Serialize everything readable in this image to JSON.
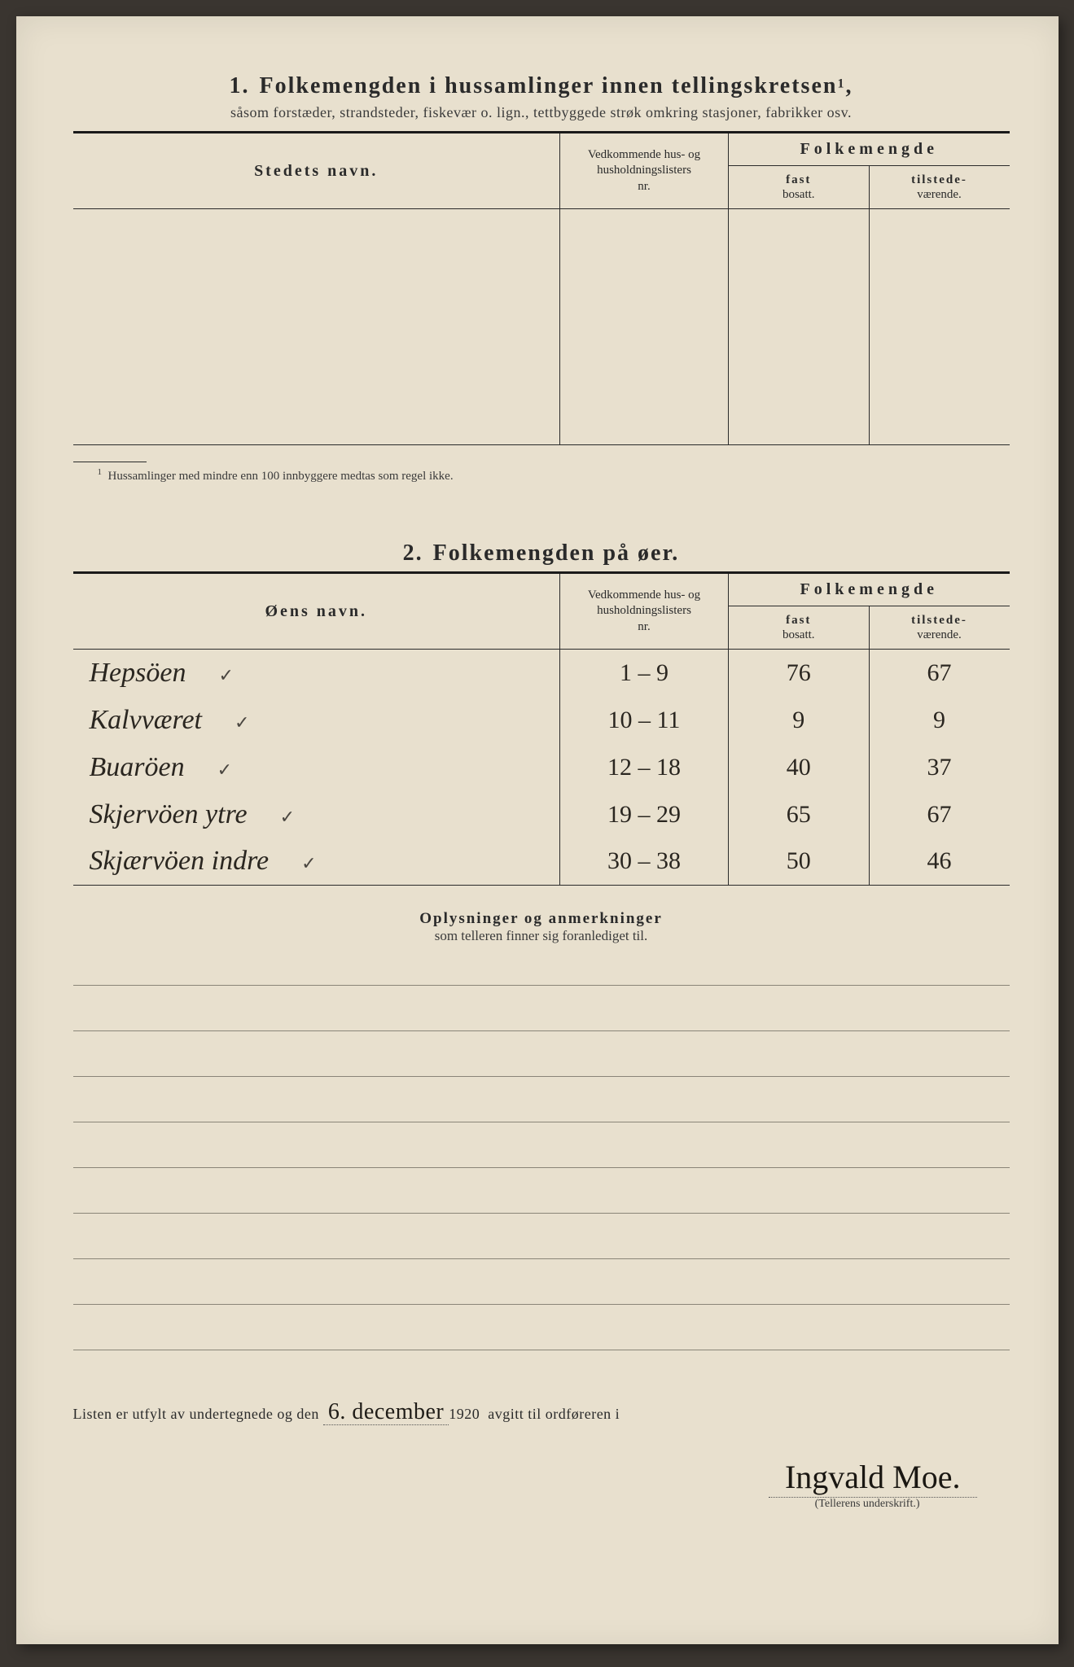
{
  "section1": {
    "number": "1.",
    "title": "Folkemengden i hussamlinger innen tellingskretsen",
    "title_sup": "1",
    "subtitle": "såsom forstæder, strandsteder, fiskevær o. lign., tettbyggede strøk omkring stasjoner, fabrikker osv.",
    "headers": {
      "name": "Stedets navn.",
      "nr_line1": "Vedkommende hus- og",
      "nr_line2": "husholdningslisters",
      "nr_line3": "nr.",
      "folk": "Folkemengde",
      "fast_bold": "fast",
      "fast_sub": "bosatt.",
      "tilst_bold": "tilstede-",
      "tilst_sub": "værende."
    },
    "empty_rows": 5,
    "footnote_sup": "1",
    "footnote": "Hussamlinger med mindre enn 100 innbyggere medtas som regel ikke."
  },
  "section2": {
    "number": "2.",
    "title": "Folkemengden på øer.",
    "headers": {
      "name": "Øens navn.",
      "nr_line1": "Vedkommende hus- og",
      "nr_line2": "husholdningslisters",
      "nr_line3": "nr.",
      "folk": "Folkemengde",
      "fast_bold": "fast",
      "fast_sub": "bosatt.",
      "tilst_bold": "tilstede-",
      "tilst_sub": "værende."
    },
    "rows": [
      {
        "name": "Hepsöen",
        "check": "✓",
        "nr": "1 – 9",
        "fast": "76",
        "tilst": "67"
      },
      {
        "name": "Kalvværet",
        "check": "✓",
        "nr": "10 – 11",
        "fast": "9",
        "tilst": "9"
      },
      {
        "name": "Buaröen",
        "check": "✓",
        "nr": "12 – 18",
        "fast": "40",
        "tilst": "37"
      },
      {
        "name": "Skjervöen ytre",
        "check": "✓",
        "nr": "19 – 29",
        "fast": "65",
        "tilst": "67"
      },
      {
        "name": "Skjærvöen indre",
        "check": "✓",
        "nr": "30 – 38",
        "fast": "50",
        "tilst": "46"
      }
    ]
  },
  "oplysninger": {
    "heading_bold": "Oplysninger og anmerkninger",
    "heading_sub": "som telleren finner sig foranlediget til.",
    "blank_line_count": 8
  },
  "footer": {
    "prefix": "Listen er utfylt av undertegnede og den",
    "date_handwritten": "6. december",
    "year": "1920",
    "suffix": "avgitt til ordføreren i",
    "signature": "Ingvald Moe.",
    "sig_label": "(Tellerens underskrift.)"
  },
  "colors": {
    "paper": "#e8e0ce",
    "ink_print": "#2a2a2a",
    "ink_hand": "#2a2620",
    "bg": "#3a3530"
  }
}
